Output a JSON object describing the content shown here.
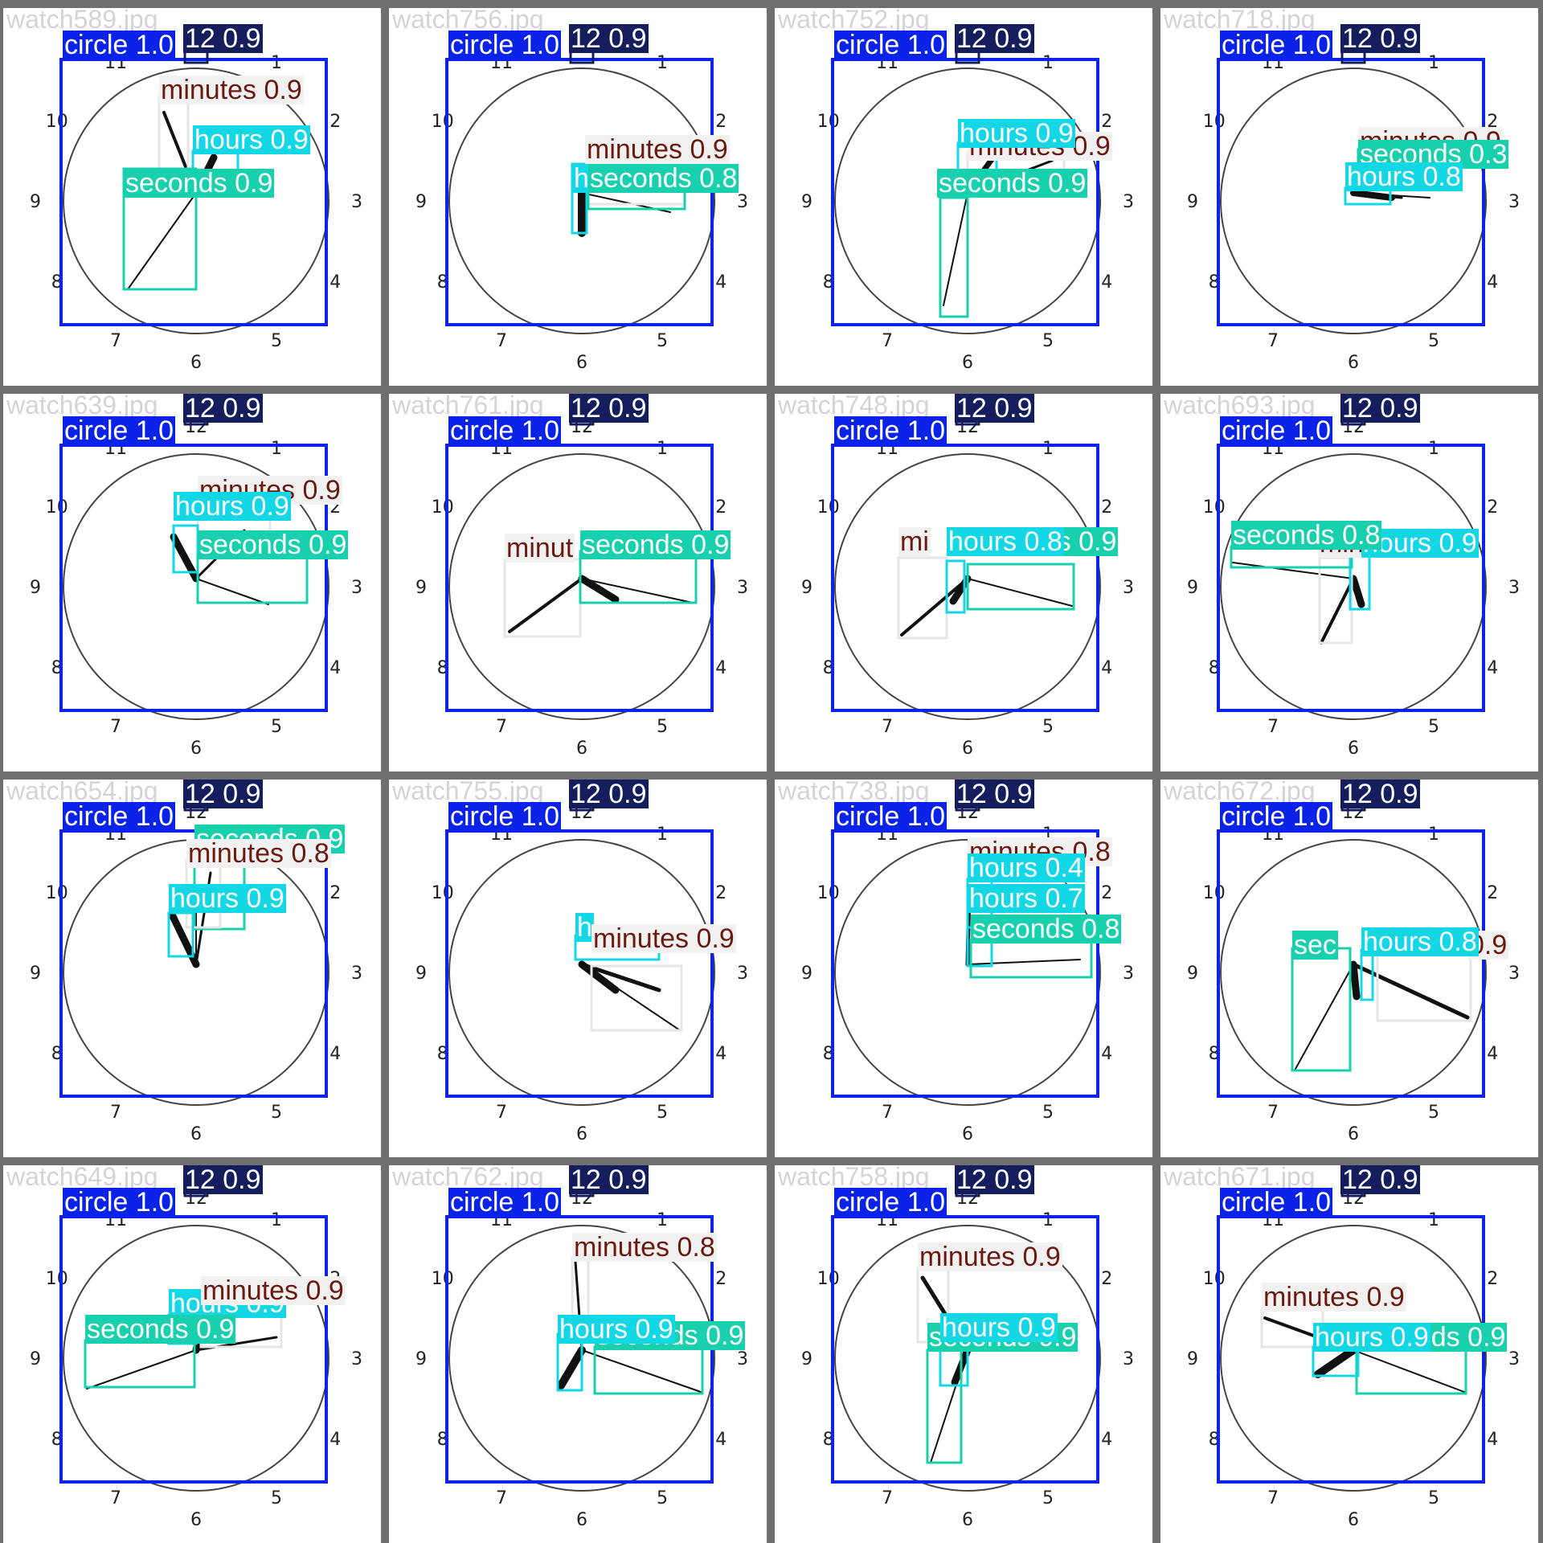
{
  "colors": {
    "frame": "#6f6f6f",
    "circle_box": "#0b23e8",
    "twelve_box": "#141e5c",
    "minutes_box": "#e6e6e6",
    "minutes_text": "#6b1a10",
    "hours_box": "#14d7e6",
    "seconds_box": "#18cfae"
  },
  "dial_numbers": [
    "12",
    "1",
    "2",
    "3",
    "4",
    "5",
    "6",
    "7",
    "8",
    "9",
    "10",
    "11"
  ],
  "tiles": [
    {
      "file": "watch589.jpg",
      "labels": [
        {
          "cls": "circle",
          "text": "circle 1.0"
        },
        {
          "cls": "twelve",
          "text": "12 0.9"
        },
        {
          "cls": "minutes",
          "text": "minutes 0.9"
        },
        {
          "cls": "hours",
          "text": "hours 0.9"
        },
        {
          "cls": "seconds",
          "text": "seconds 0.9"
        }
      ]
    },
    {
      "file": "watch756.jpg",
      "labels": [
        {
          "cls": "circle",
          "text": "circle 1.0"
        },
        {
          "cls": "twelve",
          "text": "12 0.9"
        },
        {
          "cls": "minutes",
          "text": "minutes 0.9"
        },
        {
          "cls": "hours",
          "text": "h"
        },
        {
          "cls": "seconds",
          "text": "seconds 0.8"
        }
      ]
    },
    {
      "file": "watch752.jpg",
      "labels": [
        {
          "cls": "circle",
          "text": "circle 1.0"
        },
        {
          "cls": "twelve",
          "text": "12 0.9"
        },
        {
          "cls": "minutes",
          "text": "minutes 0.9"
        },
        {
          "cls": "hours",
          "text": "hours 0.9"
        },
        {
          "cls": "seconds",
          "text": "seconds 0.9"
        }
      ]
    },
    {
      "file": "watch718.jpg",
      "labels": [
        {
          "cls": "circle",
          "text": "circle 1.0"
        },
        {
          "cls": "twelve",
          "text": "12 0.9"
        },
        {
          "cls": "minutes",
          "text": "minutes 0.9"
        },
        {
          "cls": "seconds",
          "text": "seconds 0.3"
        },
        {
          "cls": "hours",
          "text": "hours 0.8"
        }
      ]
    },
    {
      "file": "watch639.jpg",
      "labels": [
        {
          "cls": "twelve",
          "text": "12 0.9"
        },
        {
          "cls": "circle",
          "text": "circle 1.0"
        },
        {
          "cls": "minutes",
          "text": "minutes 0.9"
        },
        {
          "cls": "hours",
          "text": "hours 0.9"
        },
        {
          "cls": "seconds",
          "text": "seconds 0.9"
        }
      ]
    },
    {
      "file": "watch761.jpg",
      "labels": [
        {
          "cls": "twelve",
          "text": "12 0.9"
        },
        {
          "cls": "circle",
          "text": "circle 1.0"
        },
        {
          "cls": "minutes",
          "text": "minut"
        },
        {
          "cls": "seconds",
          "text": "seconds 0.9"
        }
      ]
    },
    {
      "file": "watch748.jpg",
      "labels": [
        {
          "cls": "twelve",
          "text": "12 0.9"
        },
        {
          "cls": "circle",
          "text": "circle 1.0"
        },
        {
          "cls": "minutes",
          "text": "mi"
        },
        {
          "cls": "seconds",
          "text": "seconds 0.9"
        },
        {
          "cls": "hours",
          "text": "hours 0.8"
        }
      ]
    },
    {
      "file": "watch693.jpg",
      "labels": [
        {
          "cls": "twelve",
          "text": "12 0.9"
        },
        {
          "cls": "circle",
          "text": "circle 1.0"
        },
        {
          "cls": "minutes",
          "text": "minutes 0.9"
        },
        {
          "cls": "hours",
          "text": "hours 0.9"
        },
        {
          "cls": "seconds",
          "text": "seconds 0.8"
        }
      ]
    },
    {
      "file": "watch654.jpg",
      "labels": [
        {
          "cls": "twelve",
          "text": "12 0.9"
        },
        {
          "cls": "circle",
          "text": "circle 1.0"
        },
        {
          "cls": "seconds",
          "text": "seconds 0.9"
        },
        {
          "cls": "minutes",
          "text": "minutes 0.8"
        },
        {
          "cls": "hours",
          "text": "hours 0.9"
        }
      ]
    },
    {
      "file": "watch755.jpg",
      "labels": [
        {
          "cls": "twelve",
          "text": "12 0.9"
        },
        {
          "cls": "circle",
          "text": "circle 1.0"
        },
        {
          "cls": "hours",
          "text": "h"
        },
        {
          "cls": "minutes",
          "text": "minutes 0.9"
        }
      ]
    },
    {
      "file": "watch738.jpg",
      "labels": [
        {
          "cls": "twelve",
          "text": "12 0.9"
        },
        {
          "cls": "circle",
          "text": "circle 1.0"
        },
        {
          "cls": "minutes",
          "text": "minutes 0.8"
        },
        {
          "cls": "hours",
          "text": "hours 0.4"
        },
        {
          "cls": "hours",
          "text": "hours 0.7"
        },
        {
          "cls": "seconds",
          "text": "seconds 0.8"
        }
      ]
    },
    {
      "file": "watch672.jpg",
      "labels": [
        {
          "cls": "twelve",
          "text": "12 0.9"
        },
        {
          "cls": "circle",
          "text": "circle 1.0"
        },
        {
          "cls": "seconds",
          "text": "sec"
        },
        {
          "cls": "minutes",
          "text": "0.9"
        },
        {
          "cls": "hours",
          "text": "hours 0.8"
        }
      ]
    },
    {
      "file": "watch649.jpg",
      "labels": [
        {
          "cls": "twelve",
          "text": "12 0.9"
        },
        {
          "cls": "circle",
          "text": "circle 1.0"
        },
        {
          "cls": "hours",
          "text": "hours 0.9"
        },
        {
          "cls": "minutes",
          "text": "minutes 0.9"
        },
        {
          "cls": "seconds",
          "text": "seconds 0.9"
        }
      ]
    },
    {
      "file": "watch762.jpg",
      "labels": [
        {
          "cls": "twelve",
          "text": "12 0.9"
        },
        {
          "cls": "circle",
          "text": "circle 1.0"
        },
        {
          "cls": "minutes",
          "text": "minutes 0.8"
        },
        {
          "cls": "seconds",
          "text": "seconds 0.9"
        },
        {
          "cls": "hours",
          "text": "hours 0.9"
        }
      ]
    },
    {
      "file": "watch758.jpg",
      "labels": [
        {
          "cls": "twelve",
          "text": "12 0.9"
        },
        {
          "cls": "circle",
          "text": "circle 1.0"
        },
        {
          "cls": "minutes",
          "text": "minutes 0.9"
        },
        {
          "cls": "seconds",
          "text": "seconds 0.9"
        },
        {
          "cls": "hours",
          "text": "hours 0.9"
        }
      ]
    },
    {
      "file": "watch671.jpg",
      "labels": [
        {
          "cls": "twelve",
          "text": "12 0.9"
        },
        {
          "cls": "circle",
          "text": "circle 1.0"
        },
        {
          "cls": "minutes",
          "text": "minutes 0.9"
        },
        {
          "cls": "seconds",
          "text": "seconds 0.9"
        },
        {
          "cls": "hours",
          "text": "hours 0.9"
        }
      ]
    }
  ]
}
